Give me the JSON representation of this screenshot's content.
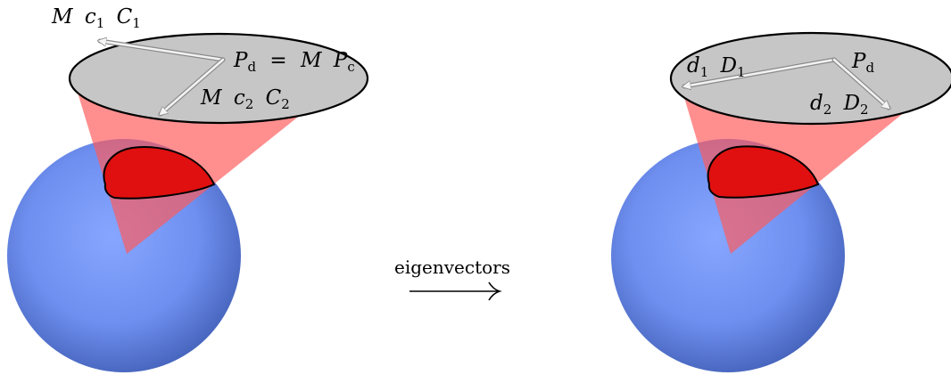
{
  "left_panel": {
    "label_c1": {
      "M": "M",
      "c": "c",
      "c_sub": "1",
      "C": "C",
      "C_sub": "1"
    },
    "label_pd": {
      "P": "P",
      "P_sub": "d",
      "eq": "=",
      "M": "M",
      "P2": "P",
      "P2_sub": "c"
    },
    "label_c2": {
      "M": "M",
      "c": "c",
      "c_sub": "2",
      "C": "C",
      "C_sub": "2"
    }
  },
  "right_panel": {
    "label_d1": {
      "d": "d",
      "d_sub": "1",
      "D": "D",
      "D_sub": "1"
    },
    "label_pd": {
      "P": "P",
      "P_sub": "d"
    },
    "label_d2": {
      "d": "d",
      "d_sub": "2",
      "D": "D",
      "D_sub": "2"
    }
  },
  "transition": {
    "label": "eigenvectors",
    "arrow": "⟶"
  },
  "colors": {
    "sphere_light": "#86a6ff",
    "sphere_dark": "#4361b8",
    "cone": "#ff7a7a",
    "patch": "#e01010",
    "ellipse_fill": "#c6c6c6",
    "arrow": "#f2f2f2"
  }
}
